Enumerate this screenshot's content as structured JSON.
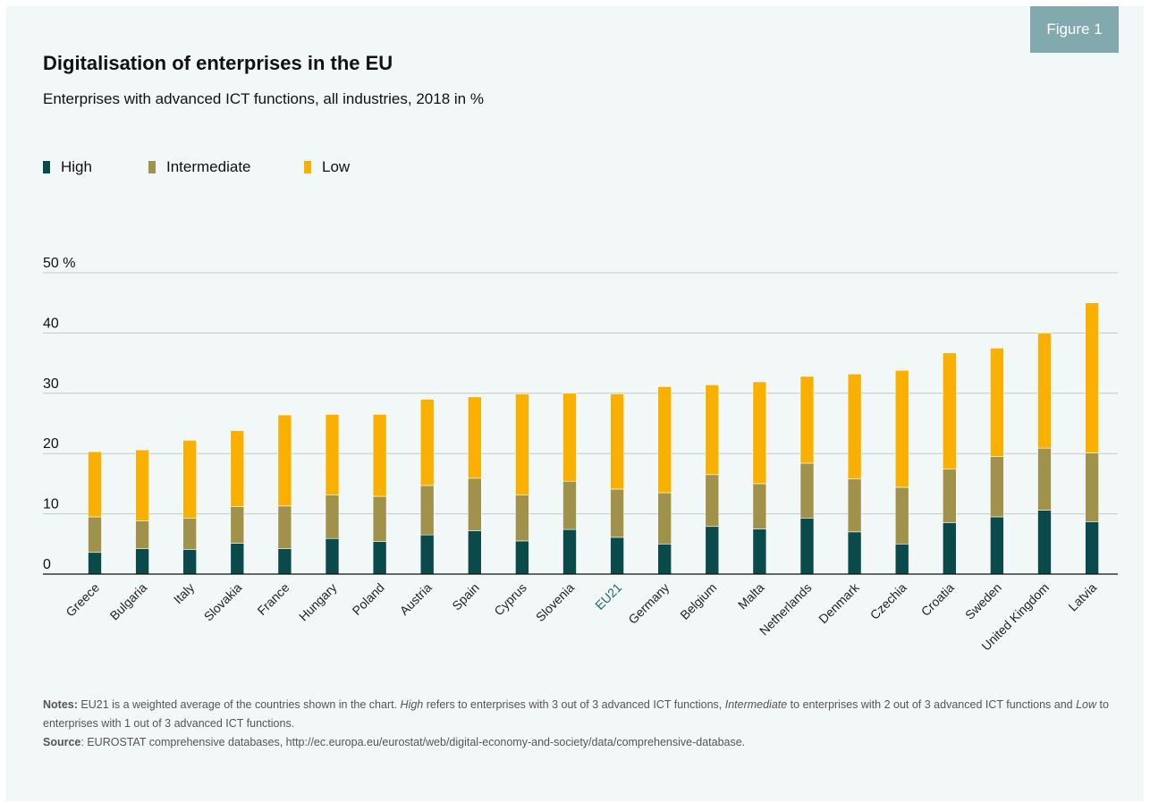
{
  "header": {
    "figure_label": "Figure 1",
    "title": "Digitalisation of enterprises in the EU",
    "subtitle": "Enterprises with advanced ICT functions, all industries, 2018 in %"
  },
  "colors": {
    "high": "#0b4a4a",
    "intermediate": "#a0924a",
    "low": "#f9b000",
    "highlight_label": "#1e6b70"
  },
  "chart_data": {
    "type": "bar",
    "stacked": true,
    "categories": [
      "Greece",
      "Bulgaria",
      "Italy",
      "Slovakia",
      "France",
      "Hungary",
      "Poland",
      "Austria",
      "Spain",
      "Cyprus",
      "Slovenia",
      "EU21",
      "Germany",
      "Belgium",
      "Malta",
      "Netherlands",
      "Denmark",
      "Czechia",
      "Croatia",
      "Sweden",
      "United Kingdom",
      "Latvia"
    ],
    "highlight_category": "EU21",
    "series": [
      {
        "name": "High",
        "color_key": "high",
        "values": [
          3.6,
          4.2,
          4.1,
          5.1,
          4.2,
          5.9,
          5.4,
          6.5,
          7.2,
          5.5,
          7.4,
          6.1,
          5.0,
          7.9,
          7.5,
          9.3,
          7.0,
          5.0,
          8.5,
          9.5,
          10.6,
          8.7
        ]
      },
      {
        "name": "Intermediate",
        "color_key": "intermediate",
        "values": [
          5.9,
          4.6,
          5.2,
          6.1,
          7.1,
          7.2,
          7.5,
          8.2,
          8.7,
          7.6,
          8.0,
          8.0,
          8.5,
          8.6,
          7.5,
          9.1,
          8.8,
          9.4,
          8.9,
          10.0,
          10.3,
          11.4
        ]
      },
      {
        "name": "Low",
        "color_key": "low",
        "values": [
          10.8,
          11.8,
          12.9,
          12.6,
          15.1,
          13.4,
          13.6,
          14.3,
          13.5,
          16.8,
          14.6,
          15.8,
          17.6,
          14.9,
          16.9,
          14.4,
          17.4,
          19.4,
          19.3,
          18.0,
          19.1,
          24.9
        ]
      }
    ],
    "ylim": [
      0,
      50
    ],
    "yticks": [
      {
        "value": 0,
        "label": "0"
      },
      {
        "value": 10,
        "label": "10"
      },
      {
        "value": 20,
        "label": "20"
      },
      {
        "value": 30,
        "label": "30"
      },
      {
        "value": 40,
        "label": "40"
      },
      {
        "value": 50,
        "label": "50 %"
      }
    ],
    "grid": true,
    "legend_position": "top-left"
  },
  "notes": {
    "notes_label": "Notes:",
    "notes_text_1": " EU21 is a weighted average of the countries shown in the chart. ",
    "notes_high": "High",
    "notes_text_2": " refers to enterprises with 3 out of 3 advanced ICT functions, ",
    "notes_intermediate": "Intermediate",
    "notes_text_3": " to enterprises with 2 out of 3 advanced ICT functions and ",
    "notes_low": "Low",
    "notes_text_4": " to enterprises with 1 out of 3 advanced ICT functions.",
    "source_label": "Source",
    "source_text": ": EUROSTAT comprehensive databases, http://ec.europa.eu/eurostat/web/digital-economy-and-society/data/comprehensive-database."
  }
}
